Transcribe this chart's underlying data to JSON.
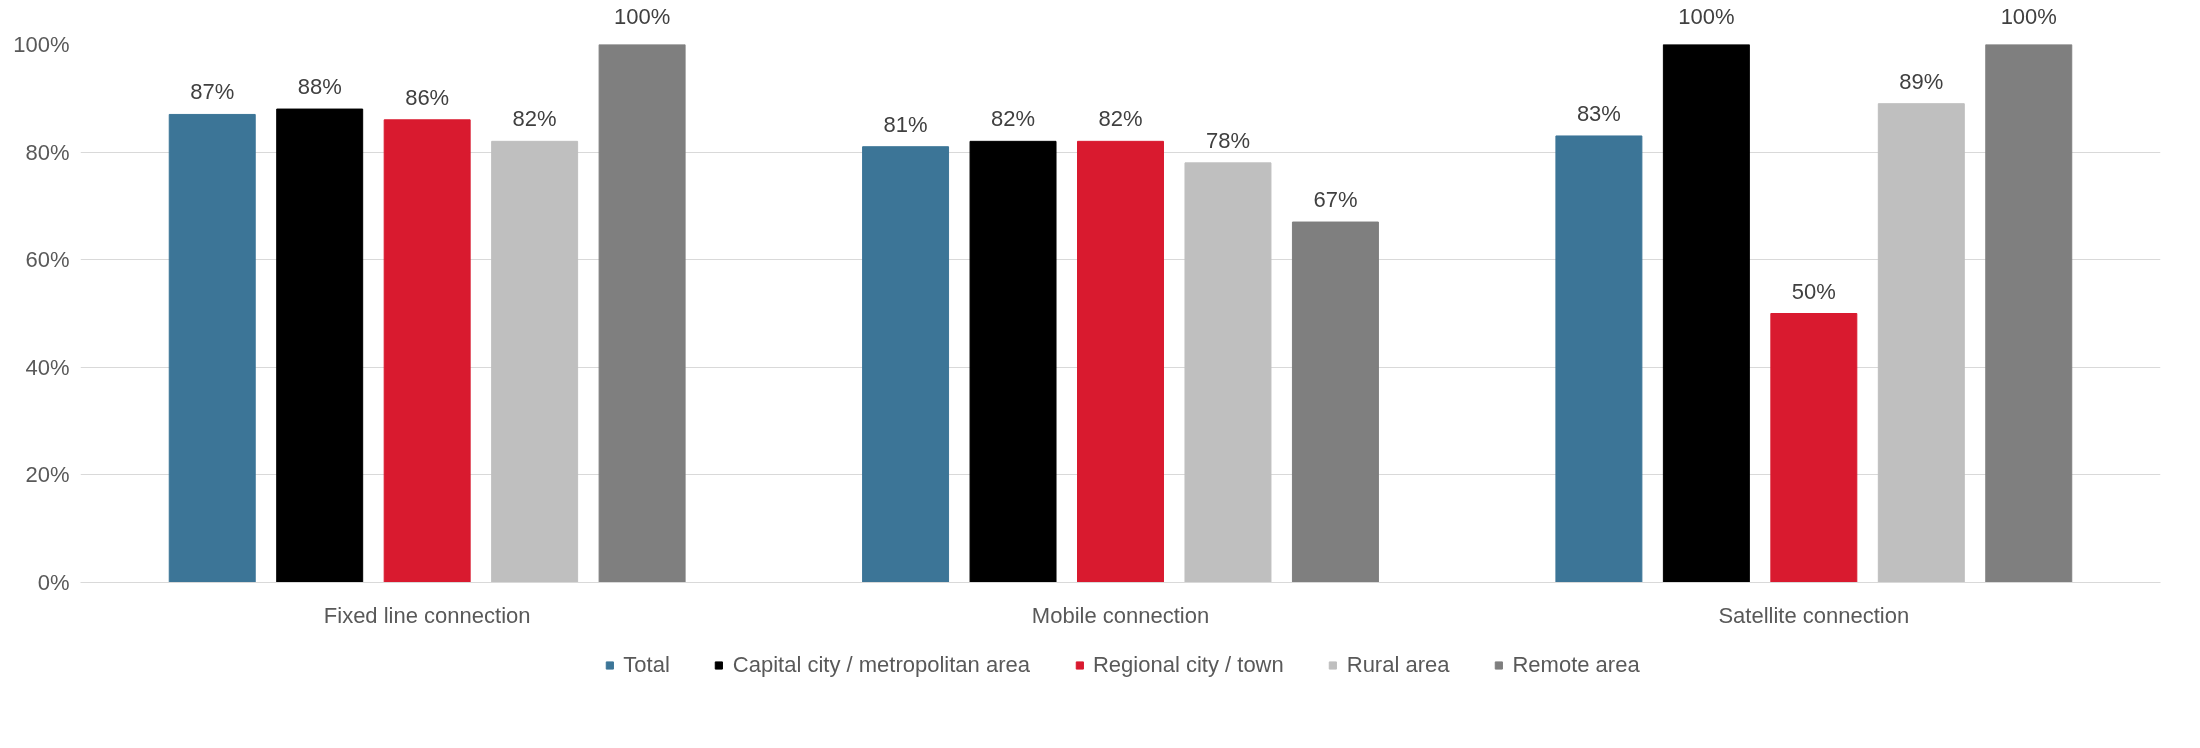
{
  "chart_data": {
    "type": "bar",
    "categories": [
      "Fixed line connection",
      "Mobile connection",
      "Satellite connection"
    ],
    "series": [
      {
        "name": "Total",
        "color": "#3c7597",
        "values": [
          87,
          81,
          83
        ]
      },
      {
        "name": "Capital city / metropolitan area",
        "color": "#000000",
        "values": [
          88,
          82,
          100
        ]
      },
      {
        "name": "Regional city / town",
        "color": "#d91a2f",
        "values": [
          86,
          82,
          50
        ]
      },
      {
        "name": "Rural area",
        "color": "#bfbfbf",
        "values": [
          82,
          78,
          89
        ]
      },
      {
        "name": "Remote area",
        "color": "#7f7f7f",
        "values": [
          100,
          67,
          100
        ]
      }
    ],
    "ylim": [
      0,
      100
    ],
    "yticks": [
      {
        "value": 0,
        "label": "0%"
      },
      {
        "value": 20,
        "label": "20%"
      },
      {
        "value": 40,
        "label": "40%"
      },
      {
        "value": 60,
        "label": "60%"
      },
      {
        "value": 80,
        "label": "80%"
      },
      {
        "value": 100,
        "label": "100%"
      }
    ],
    "value_labels": [
      [
        "87%",
        "81%",
        "83%"
      ],
      [
        "88%",
        "82%",
        "100%"
      ],
      [
        "86%",
        "82%",
        "50%"
      ],
      [
        "82%",
        "78%",
        "89%"
      ],
      [
        "100%",
        "67%",
        "100%"
      ]
    ],
    "grid": "y",
    "legend": "bottom"
  }
}
